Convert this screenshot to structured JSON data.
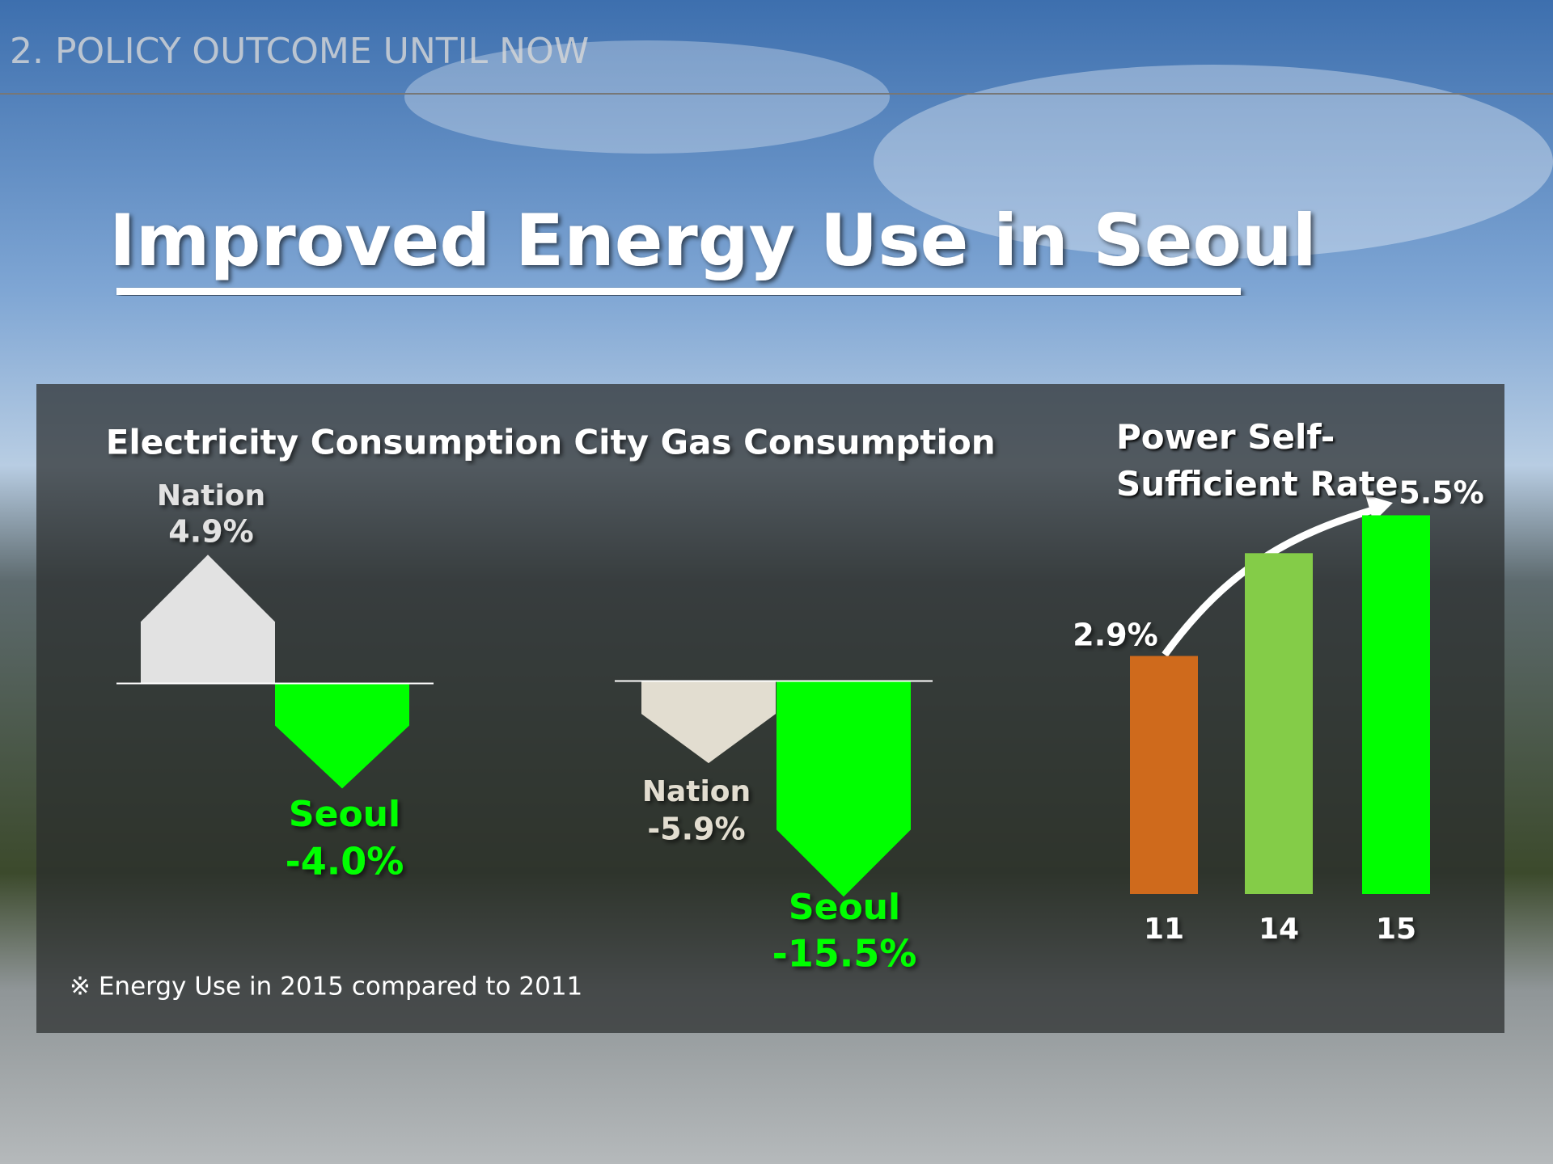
{
  "header": {
    "section": "2. POLICY OUTCOME UNTIL NOW",
    "title": "Improved Energy Use in Seoul"
  },
  "footnote": "※ Energy Use in 2015 compared to 2011",
  "chart_data": [
    {
      "type": "bar",
      "title": "Electricity Consumption",
      "categories": [
        "Nation",
        "Seoul"
      ],
      "values": [
        4.9,
        -4.0
      ],
      "value_labels": [
        "4.9%",
        "-4.0%"
      ],
      "colors": [
        "#e2e2e2",
        "#00ff00"
      ],
      "ylim": [
        -5,
        5
      ]
    },
    {
      "type": "bar",
      "title": "City Gas Consumption",
      "categories": [
        "Nation",
        "Seoul"
      ],
      "values": [
        -5.9,
        -15.5
      ],
      "value_labels": [
        "-5.9%",
        "-15.5%"
      ],
      "colors": [
        "#e2ddd0",
        "#00ff00"
      ],
      "ylim": [
        -16,
        16
      ]
    },
    {
      "type": "bar",
      "title": "Power Self-Sufficient Rate",
      "categories": [
        "11",
        "14",
        "15"
      ],
      "values": [
        2.9,
        4.8,
        5.5
      ],
      "value_labels": [
        "2.9%",
        null,
        "5.5%"
      ],
      "colors": [
        "#cf6a1c",
        "#84cc48",
        "#00ff00"
      ],
      "ylim": [
        -1.5,
        6
      ]
    }
  ]
}
